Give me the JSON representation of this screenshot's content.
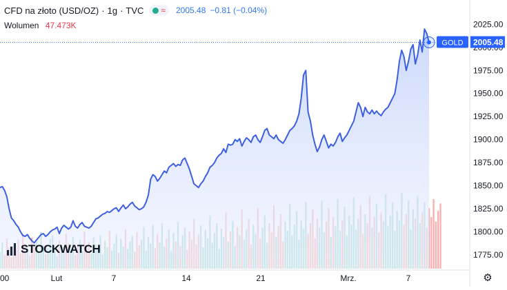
{
  "header": {
    "symbol": "CFD na złoto (USD/OZ)",
    "sep1": "·",
    "interval": "1g",
    "sep2": "·",
    "source": "TVC",
    "price": "2005.48",
    "change": "−0.81 (−0.04%)",
    "volume_label": "Wolumen",
    "volume_value": "47.473K"
  },
  "logo": {
    "text": "STOCKWATCH"
  },
  "price_tag": {
    "label": "GOLD",
    "value": "2005.48"
  },
  "colors": {
    "line": "#3b5fe0",
    "area": "#d5e0fb",
    "up_volume": "#8ed1c6",
    "down_volume": "#f4a6a6",
    "tag": "#2962ff"
  },
  "chart_data": {
    "type": "area",
    "title": "CFD na złoto (USD/OZ)",
    "xlabel": "",
    "ylabel": "",
    "ylim": [
      1760,
      2035
    ],
    "yticks": [
      1775,
      1800,
      1825,
      1850,
      1875,
      1900,
      1925,
      1950,
      1975,
      2000,
      2025
    ],
    "x_tick_labels": [
      "00",
      "Lut",
      "7",
      "14",
      "21",
      "Mrz.",
      "7"
    ],
    "last_price": 2005.48,
    "series": [
      {
        "values": [
          1848,
          1849,
          1845,
          1838,
          1825,
          1815,
          1812,
          1808,
          1805,
          1800,
          1796,
          1795,
          1797,
          1793,
          1790,
          1788,
          1791,
          1794,
          1797,
          1798,
          1795,
          1797,
          1800,
          1802,
          1803,
          1805,
          1798,
          1804,
          1807,
          1805,
          1803,
          1805,
          1812,
          1806,
          1804,
          1808,
          1810,
          1806,
          1805,
          1804,
          1806,
          1810,
          1814,
          1815,
          1817,
          1819,
          1820,
          1822,
          1821,
          1823,
          1825,
          1826,
          1822,
          1826,
          1829,
          1825,
          1827,
          1830,
          1832,
          1828,
          1826,
          1824,
          1825,
          1827,
          1832,
          1840,
          1857,
          1862,
          1860,
          1855,
          1858,
          1862,
          1866,
          1864,
          1870,
          1872,
          1874,
          1871,
          1873,
          1872,
          1878,
          1880,
          1874,
          1868,
          1860,
          1852,
          1850,
          1848,
          1852,
          1855,
          1860,
          1864,
          1870,
          1872,
          1875,
          1880,
          1883,
          1885,
          1890,
          1886,
          1895,
          1894,
          1895,
          1900,
          1898,
          1901,
          1893,
          1898,
          1902,
          1900,
          1897,
          1903,
          1905,
          1900,
          1897,
          1903,
          1910,
          1912,
          1905,
          1903,
          1901,
          1905,
          1900,
          1898,
          1896,
          1900,
          1905,
          1910,
          1912,
          1915,
          1920,
          1928,
          1945,
          1970,
          1975,
          1930,
          1920,
          1905,
          1895,
          1887,
          1892,
          1900,
          1905,
          1898,
          1891,
          1895,
          1893,
          1897,
          1903,
          1907,
          1898,
          1902,
          1905,
          1910,
          1915,
          1920,
          1930,
          1940,
          1935,
          1925,
          1935,
          1930,
          1928,
          1932,
          1928,
          1931,
          1928,
          1926,
          1930,
          1933,
          1935,
          1940,
          1945,
          1950,
          1965,
          1985,
          1997,
          1990,
          1975,
          1985,
          1998,
          2003,
          1982,
          1992,
          2008,
          1995,
          2020,
          2015,
          2005.48
        ]
      },
      {
        "name": "Wolumen",
        "values": [
          22,
          35,
          18,
          40,
          28,
          15,
          30,
          25,
          38,
          20,
          45,
          33,
          26,
          17,
          41,
          29,
          36,
          22,
          48,
          31,
          19,
          27,
          39,
          44,
          24,
          16,
          37,
          29,
          21,
          46,
          34,
          25,
          42,
          18,
          30,
          38,
          23,
          49,
          27,
          35,
          20,
          41,
          32,
          26,
          44,
          19,
          37,
          28,
          50,
          24,
          33,
          45,
          21,
          39,
          29,
          52,
          26,
          36,
          43,
          22,
          48,
          31,
          38,
          55,
          24,
          42,
          33,
          58,
          27,
          46,
          35,
          60,
          29,
          40,
          52,
          23,
          47,
          36,
          62,
          30,
          44,
          54,
          25,
          49,
          38,
          66,
          32,
          45,
          57,
          28,
          51,
          40,
          70,
          34,
          47,
          60,
          26,
          53,
          42,
          74,
          36,
          49,
          63,
          30,
          55,
          44,
          78,
          38,
          52,
          66,
          32,
          58,
          46,
          80,
          40,
          54,
          70,
          34,
          60,
          48,
          84,
          42,
          56,
          72,
          36,
          62,
          50,
          86,
          44,
          58,
          76,
          38,
          64,
          52,
          88,
          46,
          60,
          78,
          40,
          66,
          54,
          90,
          48,
          62,
          80,
          42,
          68,
          56,
          92,
          50,
          64,
          82,
          44,
          70,
          58,
          94,
          52,
          66,
          84,
          46,
          72,
          60,
          96,
          54,
          68,
          86,
          48,
          74,
          62,
          98,
          56,
          70,
          88,
          50,
          76,
          64,
          100,
          58,
          72,
          90,
          52,
          78,
          66,
          96,
          60,
          74,
          88,
          54,
          80,
          68,
          92,
          62,
          76,
          86
        ]
      }
    ]
  }
}
